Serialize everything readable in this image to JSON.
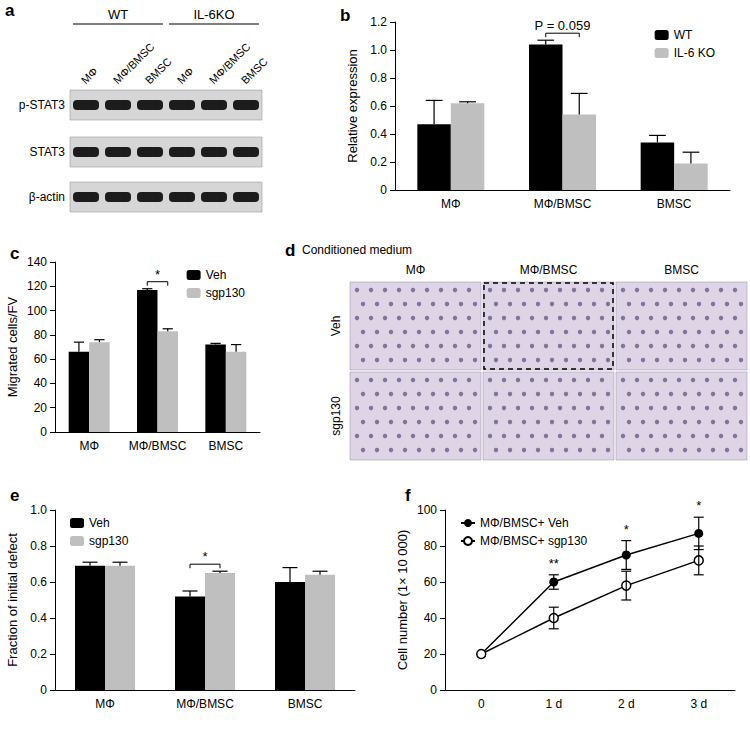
{
  "chart_data": [
    {
      "type": "bar",
      "title": "b",
      "categories": [
        "MΦ",
        "MΦ/BMSC",
        "BMSC"
      ],
      "series": [
        {
          "name": "WT",
          "color": "#000000",
          "values": [
            0.47,
            1.04,
            0.34
          ],
          "error": [
            0.17,
            0.03,
            0.05
          ]
        },
        {
          "name": "IL-6 KO",
          "color": "#bfbfbf",
          "values": [
            0.62,
            0.54,
            0.19
          ],
          "error": [
            0.01,
            0.15,
            0.08
          ]
        }
      ],
      "ylabel": "Relative expression",
      "ylim": [
        0,
        1.2
      ],
      "yticks": [
        0,
        0.2,
        0.4,
        0.6,
        0.8,
        {
          "value": 1,
          "label": "1.0"
        },
        1.2
      ],
      "grid": false,
      "legend": "upper right",
      "annotations": [
        {
          "text": "P = 0.059",
          "category": "MΦ/BMSC"
        }
      ]
    },
    {
      "type": "bar",
      "title": "c",
      "categories": [
        "MΦ",
        "MΦ/BMSC",
        "BMSC"
      ],
      "series": [
        {
          "name": "Veh",
          "color": "#000000",
          "values": [
            66,
            117,
            72
          ],
          "error": [
            8,
            1,
            1
          ]
        },
        {
          "name": "sgp130",
          "color": "#bfbfbf",
          "values": [
            74,
            83,
            66
          ],
          "error": [
            2,
            2,
            6
          ]
        }
      ],
      "ylabel": "Migrated cells/FV",
      "ylim": [
        0,
        140
      ],
      "yticks": [
        0,
        20,
        40,
        60,
        80,
        100,
        120,
        140
      ],
      "grid": false,
      "legend": "upper right",
      "annotations": [
        {
          "text": "*",
          "category": "MΦ/BMSC"
        }
      ]
    },
    {
      "type": "bar",
      "title": "e",
      "categories": [
        "MΦ",
        "MΦ/BMSC",
        "BMSC"
      ],
      "series": [
        {
          "name": "Veh",
          "color": "#000000",
          "values": [
            0.69,
            0.52,
            0.6
          ],
          "error": [
            0.02,
            0.03,
            0.08
          ]
        },
        {
          "name": "sgp130",
          "color": "#bfbfbf",
          "values": [
            0.69,
            0.65,
            0.64
          ],
          "error": [
            0.02,
            0.01,
            0.02
          ]
        }
      ],
      "ylabel": "Fraction of initial defect",
      "ylim": [
        0,
        1
      ],
      "yticks": [
        0,
        0.2,
        0.4,
        0.6,
        0.8,
        {
          "value": 1,
          "label": "1.0"
        }
      ],
      "grid": false,
      "legend": "upper left",
      "annotations": [
        {
          "text": "*",
          "category": "MΦ/BMSC"
        }
      ]
    },
    {
      "type": "line",
      "title": "f",
      "categories": [
        "0",
        "1 d",
        "2 d",
        "3 d"
      ],
      "series": [
        {
          "name": "MΦ/BMSC+ Veh",
          "color": "#000000",
          "marker": "circle",
          "values": [
            20,
            60,
            75,
            87
          ],
          "error": [
            null,
            4,
            8,
            9
          ]
        },
        {
          "name": "MΦ/BMSC+ sgp130",
          "color": "#000000",
          "marker": "open_circle",
          "values": [
            20,
            40,
            58,
            72
          ],
          "error": [
            null,
            6,
            8,
            8
          ]
        }
      ],
      "ylabel": "Cell number (1× 10 000)",
      "ylim": [
        0,
        100
      ],
      "yticks": [
        0,
        20,
        40,
        60,
        80,
        100
      ],
      "grid": false,
      "legend": "upper left",
      "annotations": [
        {
          "text": "**",
          "category": "1 d"
        },
        {
          "text": "*",
          "category": "2 d"
        },
        {
          "text": "*",
          "category": "3 d"
        }
      ]
    }
  ],
  "blot": {
    "panel": "a",
    "groups": [
      {
        "label": "WT",
        "lanes": [
          "MΦ",
          "MΦ/BMSC",
          "BMSC"
        ]
      },
      {
        "label": "IL-6KO",
        "lanes": [
          "MΦ",
          "MΦ/BMSC",
          "BMSC"
        ]
      }
    ],
    "rows": [
      "p-STAT3",
      "STAT3",
      "β-actin"
    ]
  },
  "micrographs": {
    "panel": "d",
    "header": "Conditioned medium",
    "columns": [
      "MΦ",
      "MΦ/BMSC",
      "BMSC"
    ],
    "rows": [
      "Veh",
      "sgp130"
    ]
  }
}
